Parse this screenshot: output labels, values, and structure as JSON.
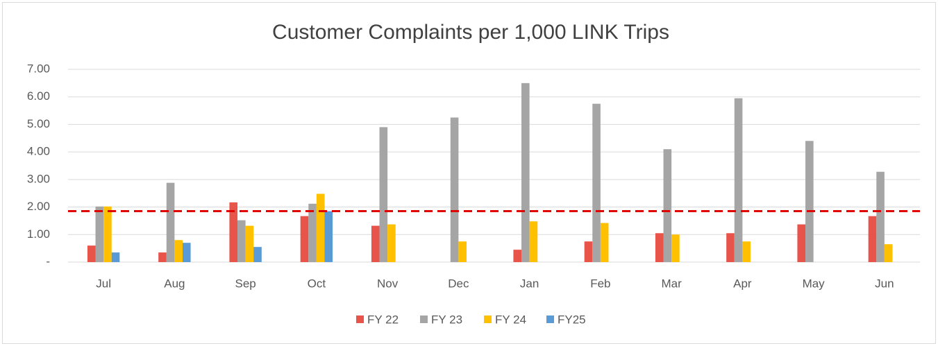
{
  "chart_data": {
    "type": "bar",
    "title": "Customer Complaints per 1,000 LINK Trips",
    "categories": [
      "Jul",
      "Aug",
      "Sep",
      "Oct",
      "Nov",
      "Dec",
      "Jan",
      "Feb",
      "Mar",
      "Apr",
      "May",
      "Jun"
    ],
    "series": [
      {
        "name": "FY 22",
        "color": "#e8534a",
        "values": [
          0.6,
          0.35,
          2.17,
          1.67,
          1.32,
          null,
          0.45,
          0.75,
          1.05,
          1.05,
          1.37,
          1.67
        ]
      },
      {
        "name": "FY 23",
        "color": "#a5a5a5",
        "values": [
          2.02,
          2.88,
          1.52,
          2.12,
          4.9,
          5.25,
          6.5,
          5.75,
          4.1,
          5.95,
          4.4,
          3.28
        ]
      },
      {
        "name": "FY 24",
        "color": "#ffc000",
        "values": [
          2.02,
          0.8,
          1.32,
          2.48,
          1.37,
          0.75,
          1.48,
          1.42,
          1.0,
          0.75,
          null,
          0.65
        ]
      },
      {
        "name": "FY25",
        "color": "#5b9bd5",
        "values": [
          0.35,
          0.7,
          0.55,
          1.85,
          null,
          null,
          null,
          null,
          null,
          null,
          null,
          null
        ]
      }
    ],
    "ylim": [
      0,
      7
    ],
    "yticks": [
      {
        "value": 0,
        "label": "-"
      },
      {
        "value": 1,
        "label": "1.00"
      },
      {
        "value": 2,
        "label": "2.00"
      },
      {
        "value": 3,
        "label": "3.00"
      },
      {
        "value": 4,
        "label": "4.00"
      },
      {
        "value": 5,
        "label": "5.00"
      },
      {
        "value": 6,
        "label": "6.00"
      },
      {
        "value": 7,
        "label": "7.00"
      }
    ],
    "grid": true,
    "reference_line": {
      "value": 1.85,
      "color": "#e00000"
    },
    "legend": "bottom"
  }
}
